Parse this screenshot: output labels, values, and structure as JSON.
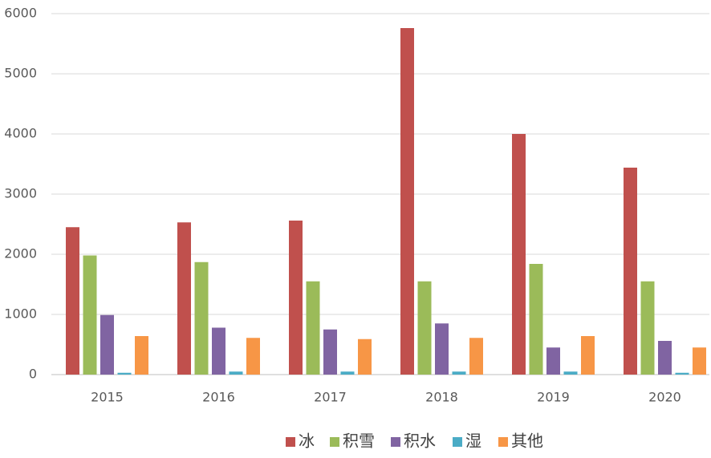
{
  "chart_data": {
    "type": "bar",
    "categories": [
      "2015",
      "2016",
      "2017",
      "2018",
      "2019",
      "2020"
    ],
    "series": [
      {
        "name": "冰",
        "color": "#c0504d",
        "values": [
          2450,
          2530,
          2560,
          5760,
          4000,
          3440
        ]
      },
      {
        "name": "积雪",
        "color": "#9bbb59",
        "values": [
          1980,
          1870,
          1550,
          1550,
          1840,
          1550
        ]
      },
      {
        "name": "积水",
        "color": "#8064a2",
        "values": [
          990,
          780,
          750,
          850,
          450,
          560
        ]
      },
      {
        "name": "湿",
        "color": "#4bacc6",
        "values": [
          30,
          50,
          50,
          50,
          50,
          30
        ]
      },
      {
        "name": "其他",
        "color": "#f79646",
        "values": [
          640,
          610,
          590,
          610,
          640,
          450
        ]
      }
    ],
    "ylim": [
      0,
      6000
    ],
    "yticks": [
      0,
      1000,
      2000,
      3000,
      4000,
      5000,
      6000
    ],
    "grid": true,
    "legend": "bottom"
  }
}
